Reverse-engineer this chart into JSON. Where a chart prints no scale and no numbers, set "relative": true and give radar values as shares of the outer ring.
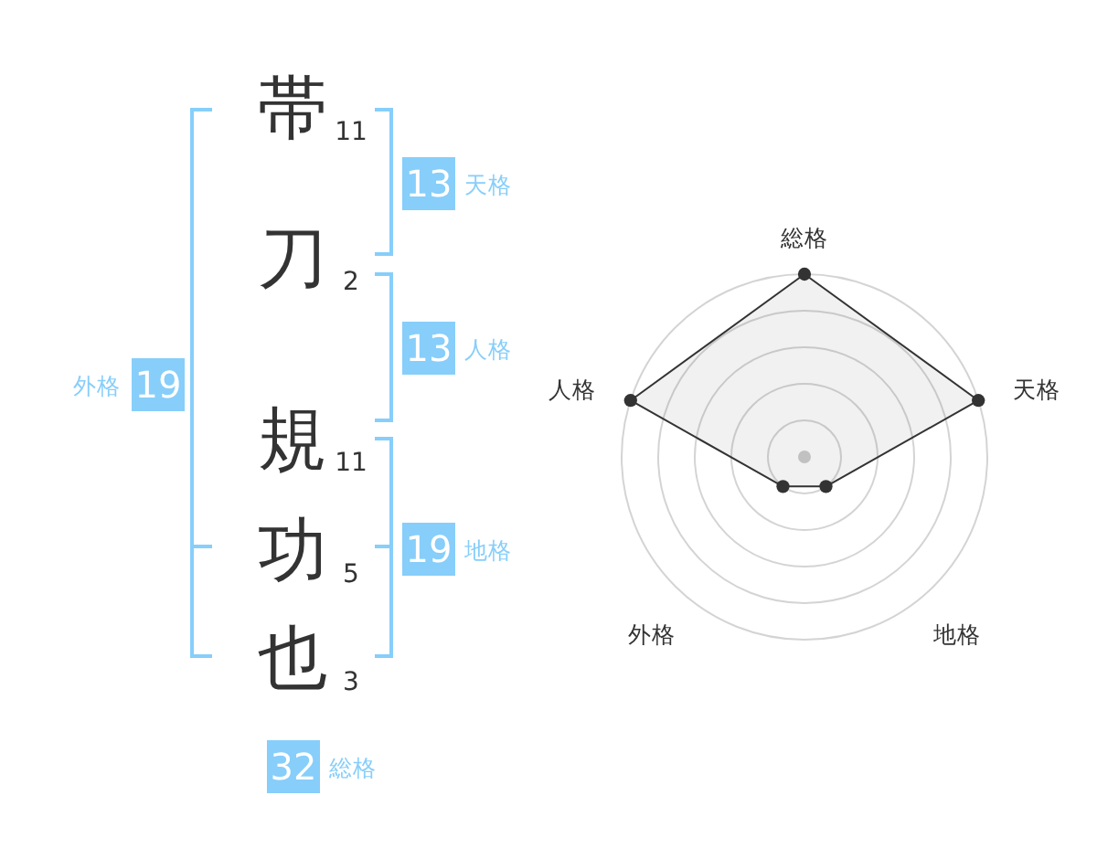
{
  "chart_data": [
    {
      "type": "other",
      "categories": [
        "帯",
        "刀",
        "規",
        "功",
        "也"
      ],
      "values": [
        11,
        2,
        11,
        5,
        3
      ],
      "data_labels": true,
      "color": "#87cefa",
      "annotations": [
        "13",
        "天格",
        "13",
        "人格",
        "19",
        "地格",
        "19",
        "外格",
        "32",
        "総格"
      ]
    },
    {
      "type": "radar",
      "categories": [
        "総格",
        "天格",
        "地格",
        "外格",
        "人格"
      ],
      "relative": true,
      "grid": true,
      "marker": "circle",
      "series": [
        {
          "color": "#333333",
          "values": [
            1,
            1,
            0.2,
            0.2,
            1
          ]
        }
      ]
    }
  ]
}
